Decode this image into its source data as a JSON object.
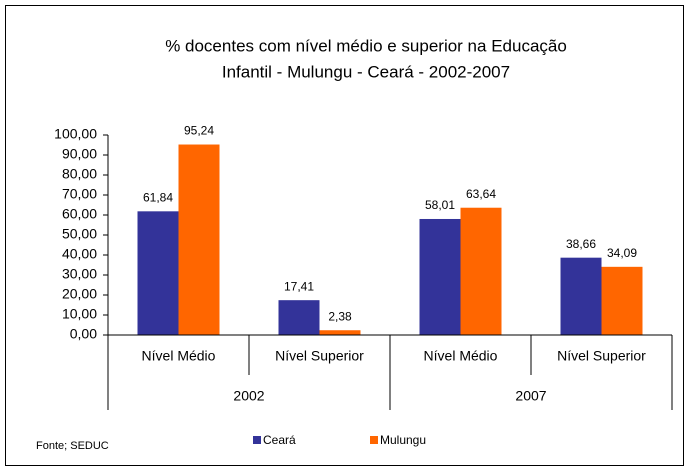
{
  "chart_data": {
    "type": "bar",
    "title": [
      "% docentes com nível médio e superior na  Educação",
      "Infantil - Mulungu - Ceará - 2002-2007"
    ],
    "categories": [
      "Nível Médio",
      "Nível Superior",
      "Nível Médio",
      "Nível Superior"
    ],
    "category_groups": [
      "2002",
      "2007"
    ],
    "series": [
      {
        "name": "Ceará",
        "color": "#333399",
        "values": [
          61.84,
          17.41,
          58.01,
          38.66
        ],
        "value_labels": [
          "61,84",
          "17,41",
          "58,01",
          "38,66"
        ]
      },
      {
        "name": "Mulungu",
        "color": "#ff6600",
        "values": [
          95.24,
          2.38,
          63.64,
          34.09
        ],
        "value_labels": [
          "95,24",
          "2,38",
          "63,64",
          "34,09"
        ]
      }
    ],
    "ylim": [
      0,
      100
    ],
    "yticks": [
      {
        "value": 0,
        "label": "0,00"
      },
      {
        "value": 10,
        "label": "10,00"
      },
      {
        "value": 20,
        "label": "20,00"
      },
      {
        "value": 30,
        "label": "30,00"
      },
      {
        "value": 40,
        "label": "40,00"
      },
      {
        "value": 50,
        "label": "50,00"
      },
      {
        "value": 60,
        "label": "60,00"
      },
      {
        "value": 70,
        "label": "70,00"
      },
      {
        "value": 80,
        "label": "80,00"
      },
      {
        "value": 90,
        "label": "90,00"
      },
      {
        "value": 100,
        "label": "100,00"
      }
    ],
    "source": "Fonte; SEDUC"
  }
}
